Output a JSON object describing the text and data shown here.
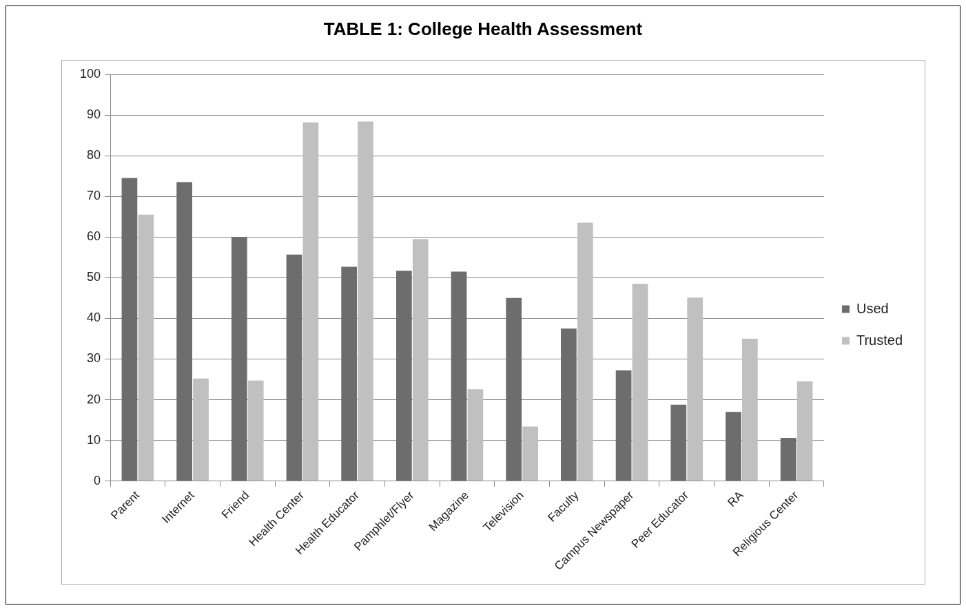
{
  "chart_data": {
    "type": "bar",
    "title": "TABLE 1:  College Health Assessment",
    "categories": [
      "Parent",
      "Internet",
      "Friend",
      "Health Center",
      "Health Educator",
      "Pamphlet/Flyer",
      "Magazine",
      "Television",
      "Faculty",
      "Campus Newspaper",
      "Peer Educator",
      "RA",
      "Religious Center"
    ],
    "series": [
      {
        "name": "Used",
        "color": "#6d6d6d",
        "values": [
          74.5,
          73.5,
          60,
          55.7,
          52.7,
          51.7,
          51.5,
          45,
          37.5,
          27.2,
          18.8,
          17,
          10.6
        ]
      },
      {
        "name": "Trusted",
        "color": "#c0c0c0",
        "values": [
          65.5,
          25.2,
          24.7,
          88.2,
          88.4,
          59.5,
          22.6,
          13.4,
          63.5,
          48.5,
          45.1,
          35,
          24.5
        ]
      }
    ],
    "ylim": [
      0,
      100
    ],
    "yticks": [
      0,
      10,
      20,
      30,
      40,
      50,
      60,
      70,
      80,
      90,
      100
    ],
    "grid": "y",
    "legend": "right"
  }
}
